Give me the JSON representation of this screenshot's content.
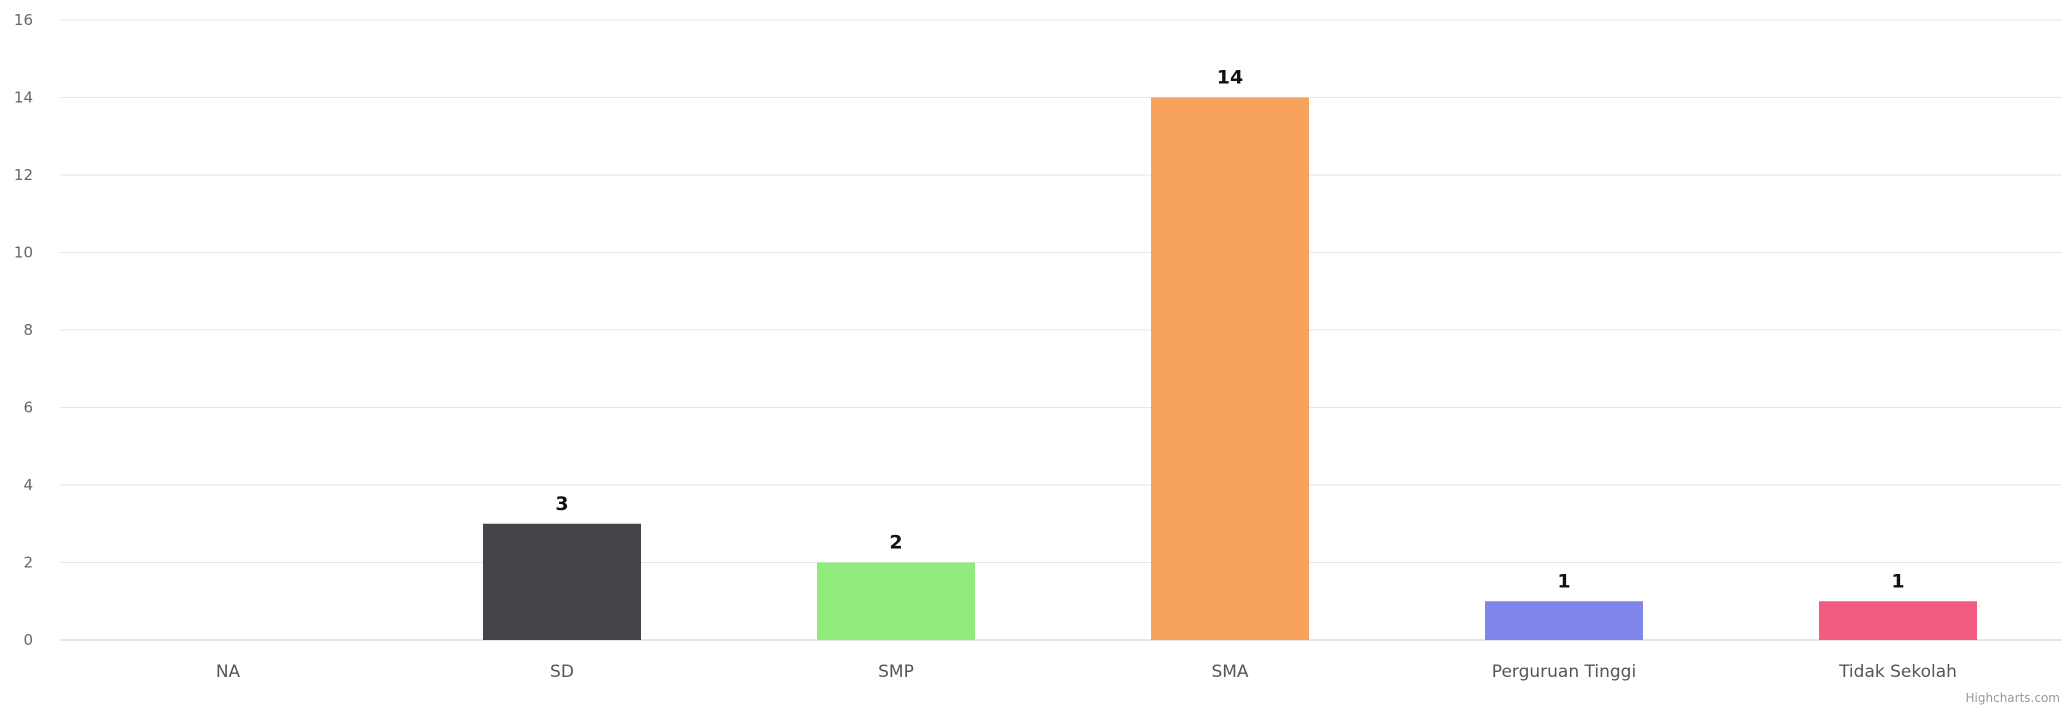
{
  "chart_data": {
    "type": "bar",
    "categories": [
      "NA",
      "SD",
      "SMP",
      "SMA",
      "Perguruan Tinggi",
      "Tidak Sekolah"
    ],
    "values": [
      0,
      3,
      2,
      14,
      1,
      1
    ],
    "data_labels": [
      "",
      "3",
      "2",
      "14",
      "1",
      "1"
    ],
    "colors": [
      "#7cb5ec",
      "#434348",
      "#90ed7d",
      "#f7a35c",
      "#8085e9",
      "#f15c80"
    ],
    "yticks": [
      "0",
      "2",
      "4",
      "6",
      "8",
      "10",
      "12",
      "14",
      "16"
    ],
    "ylim": [
      0,
      16
    ],
    "grid": true,
    "legend": "none"
  },
  "credit": "Highcharts.com"
}
